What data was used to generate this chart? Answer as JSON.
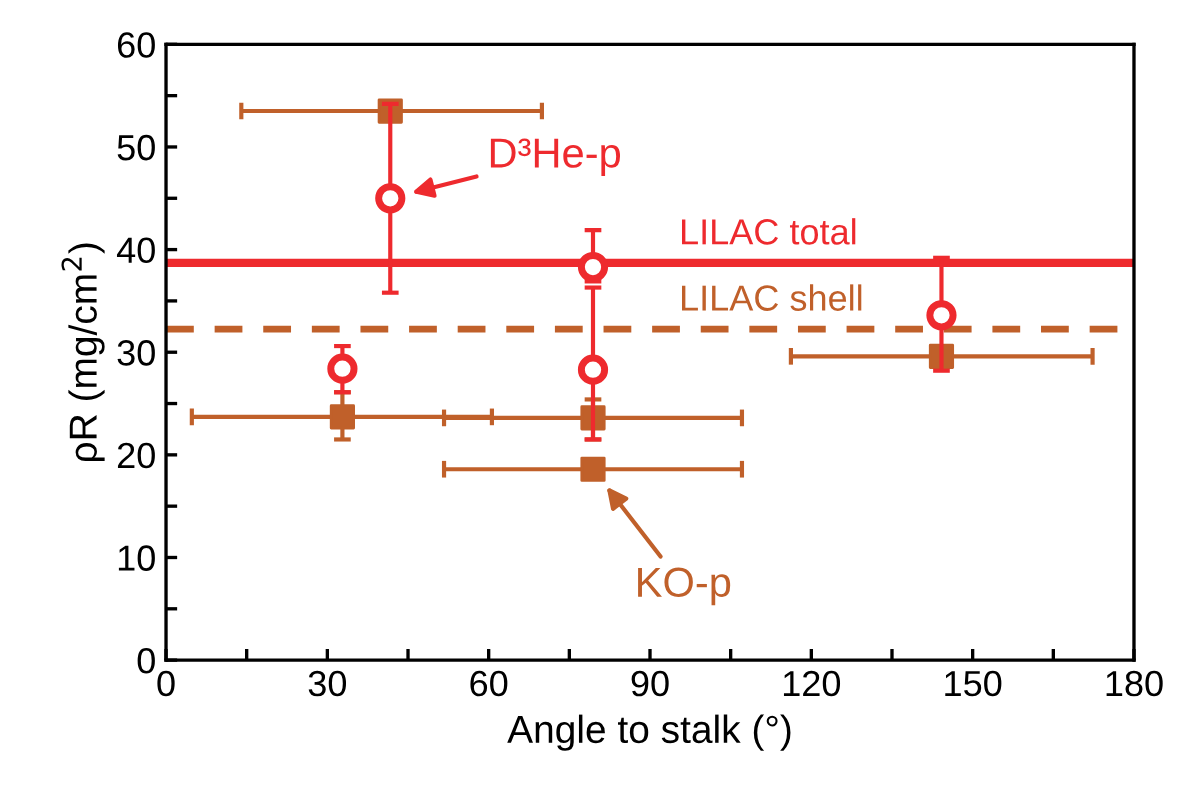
{
  "chart_data": {
    "type": "scatter",
    "xlabel": "Angle to stalk (°)",
    "ylabel": "ρR (mg/cm$^{2}$)",
    "xlim": [
      0,
      180
    ],
    "ylim": [
      0,
      60
    ],
    "xticks": [
      0,
      {
        "value": 15,
        "label": null
      },
      30,
      {
        "value": 45,
        "label": null
      },
      60,
      {
        "value": 75,
        "label": null
      },
      90,
      {
        "value": 105,
        "label": null
      },
      120,
      {
        "value": 135,
        "label": null
      },
      150,
      {
        "value": 165,
        "label": null
      },
      180
    ],
    "yticks": [
      0,
      {
        "value": 5,
        "label": null
      },
      10,
      {
        "value": 15,
        "label": null
      },
      20,
      {
        "value": 25,
        "label": null
      },
      30,
      {
        "value": 35,
        "label": null
      },
      40,
      {
        "value": 45,
        "label": null
      },
      50,
      {
        "value": 55,
        "label": null
      },
      60
    ],
    "grid": false,
    "legend": false,
    "series": [
      {
        "color": "#c0602a",
        "marker": "square",
        "x": [
          41.7,
          32.8,
          79.4,
          79.4,
          144.2
        ],
        "values": [
          53.5,
          23.7,
          23.6,
          18.6,
          29.6
        ],
        "errors": [
          null,
          [
            21.5,
            26.1
          ],
          [
            21.5,
            25.4
          ],
          null,
          [
            28.6,
            30.6
          ]
        ],
        "xerrors": [
          [
            14,
            69.9
          ],
          [
            4.8,
            60.6
          ],
          [
            51.7,
            107.1
          ],
          [
            51.7,
            107.1
          ],
          [
            116.2,
            172.3
          ]
        ]
      },
      {
        "color": "#ee2a2e",
        "marker": "circle",
        "x": [
          41.7,
          32.8,
          79.4,
          79.4,
          144.2
        ],
        "values": [
          45,
          28.4,
          38.3,
          28.3,
          33.6
        ],
        "errors": [
          [
            35.8,
            54.2
          ],
          [
            26.1,
            30.6
          ],
          [
            36.9,
            41.9
          ],
          [
            21.5,
            36.3
          ],
          [
            28.2,
            39.2
          ]
        ]
      }
    ],
    "ref_lines": [
      {
        "axis": "y",
        "value": 38.7,
        "label": "LILAC total",
        "color": "#ee2a2e",
        "line_style": "solid"
      },
      {
        "axis": "y",
        "value": 32.25,
        "label": "LILAC shell",
        "color": "#c0602a",
        "line_style": "dashed"
      }
    ],
    "annotations": [
      {
        "text": "D³He-p",
        "x": 41.7,
        "y": 45
      },
      {
        "text": "KO-p",
        "x": 79.4,
        "y": 18.6
      }
    ]
  }
}
